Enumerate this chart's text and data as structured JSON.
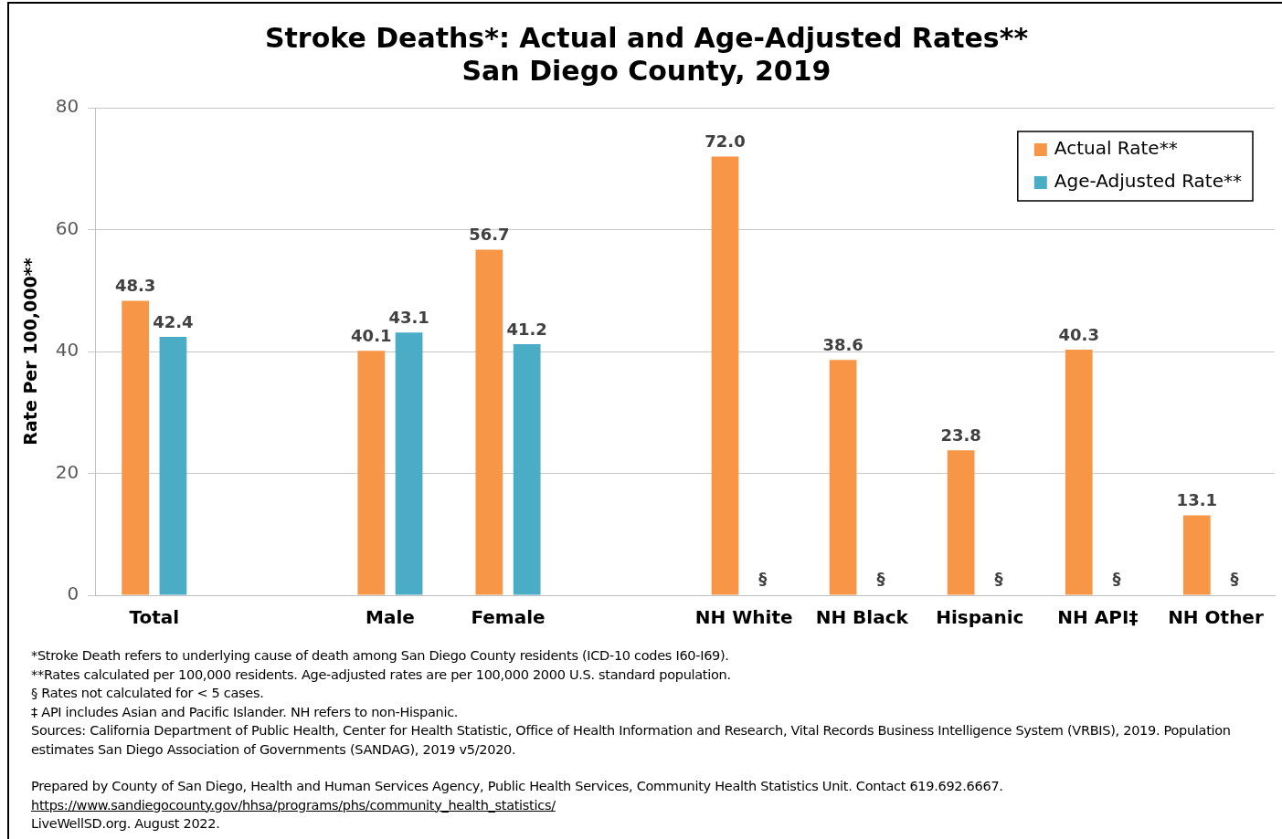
{
  "chart_data": {
    "type": "bar",
    "title": [
      "Stroke Deaths*: Actual and Age-Adjusted Rates**",
      "San Diego County, 2019"
    ],
    "ylabel": "Rate Per 100,000**",
    "categories": [
      "Total",
      null,
      "Male",
      "Female",
      null,
      "NH White",
      "NH Black",
      "Hispanic",
      "NH API‡",
      "NH Other"
    ],
    "series": [
      {
        "name": "Actual Rate**",
        "color": "#f79646",
        "values": [
          48.3,
          null,
          40.1,
          56.7,
          null,
          72.0,
          38.6,
          23.8,
          40.3,
          13.1
        ],
        "value_labels": [
          "48.3",
          null,
          "40.1",
          "56.7",
          null,
          "72.0",
          "38.6",
          "23.8",
          "40.3",
          "13.1"
        ]
      },
      {
        "name": "Age-Adjusted Rate**",
        "color": "#4bacc6",
        "values": [
          42.4,
          null,
          43.1,
          41.2,
          null,
          null,
          null,
          null,
          null,
          null
        ],
        "value_labels": [
          "42.4",
          null,
          "43.1",
          "41.2",
          null,
          "§",
          "§",
          "§",
          "§",
          "§"
        ]
      }
    ],
    "ylim": [
      0,
      80
    ],
    "yticks": [
      0,
      20,
      40,
      60,
      80
    ],
    "grid": "y",
    "legend": "top right",
    "annotations": [
      "*Stroke Death refers to underlying cause of death among San Diego County residents (ICD-10 codes I60-I69).",
      "**Rates calculated per 100,000 residents. Age-adjusted rates are per 100,000 2000 U.S. standard population.",
      "§ Rates not calculated for < 5 cases.",
      "‡ API includes Asian and Pacific Islander. NH refers to non-Hispanic.",
      "Sources: California Department of Public Health, Center for Health Statistic, Office of Health Information and Research, Vital Records Business Intelligence System (VRBIS), 2019. Population estimates San Diego Association of Governments (SANDAG), 2019 v5/2020.",
      "Prepared by County of San Diego, Health and Human Services Agency, Public Health Services, Community Health Statistics Unit. Contact 619.692.6667.",
      "https://www.sandiegocounty.gov/hhsa/programs/phs/community_health_statistics/",
      "LiveWellSD.org. August 2022."
    ]
  }
}
